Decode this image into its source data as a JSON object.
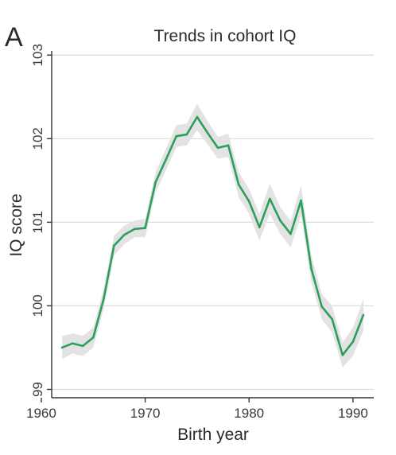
{
  "panel_label": "A",
  "chart_data": {
    "type": "line",
    "title": "Trends in cohort IQ",
    "xlabel": "Birth year",
    "ylabel": "IQ score",
    "xlim": [
      1961,
      1992
    ],
    "ylim": [
      98.9,
      103.05
    ],
    "xticks": [
      1960,
      1970,
      1980,
      1990
    ],
    "yticks": [
      99,
      100,
      101,
      102,
      103
    ],
    "grid": "horizontal",
    "legend": "none",
    "line_color": "#2e9e5b",
    "band_color": "#e3e3e3",
    "series": [
      {
        "x": [
          1962,
          1963,
          1964,
          1965,
          1966,
          1967,
          1968,
          1969,
          1970,
          1971,
          1972,
          1973,
          1974,
          1975,
          1976,
          1977,
          1978,
          1979,
          1980,
          1981,
          1982,
          1983,
          1984,
          1985,
          1986,
          1987,
          1988,
          1989,
          1990,
          1991
        ],
        "values": [
          99.5,
          99.55,
          99.52,
          99.62,
          100.08,
          100.72,
          100.85,
          100.92,
          100.93,
          101.48,
          101.75,
          102.03,
          102.05,
          102.26,
          102.07,
          101.89,
          101.92,
          101.45,
          101.25,
          100.94,
          101.28,
          101.02,
          100.86,
          101.26,
          100.44,
          99.99,
          99.84,
          99.41,
          99.57,
          99.89
        ],
        "lower": [
          99.36,
          99.43,
          99.4,
          99.5,
          99.96,
          100.6,
          100.74,
          100.82,
          100.82,
          101.36,
          101.62,
          101.9,
          101.92,
          102.1,
          101.93,
          101.76,
          101.78,
          101.3,
          101.1,
          100.78,
          101.1,
          100.86,
          100.7,
          101.08,
          100.28,
          99.84,
          99.68,
          99.26,
          99.4,
          99.7
        ],
        "upper": [
          99.64,
          99.67,
          99.64,
          99.74,
          100.2,
          100.84,
          100.96,
          101.02,
          101.04,
          101.6,
          101.88,
          102.16,
          102.18,
          102.42,
          102.21,
          102.02,
          102.06,
          101.6,
          101.4,
          101.1,
          101.46,
          101.18,
          101.02,
          101.44,
          100.6,
          100.14,
          100.0,
          99.56,
          99.74,
          100.08
        ]
      }
    ]
  }
}
